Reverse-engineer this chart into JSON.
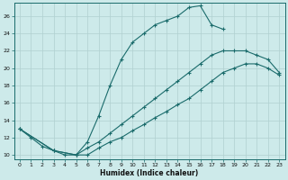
{
  "xlabel": "Humidex (Indice chaleur)",
  "xlim": [
    -0.5,
    23.5
  ],
  "ylim": [
    9.5,
    27.5
  ],
  "xticks": [
    0,
    1,
    2,
    3,
    4,
    5,
    6,
    7,
    8,
    9,
    10,
    11,
    12,
    13,
    14,
    15,
    16,
    17,
    18,
    19,
    20,
    21,
    22,
    23
  ],
  "yticks": [
    10,
    12,
    14,
    16,
    18,
    20,
    22,
    24,
    26
  ],
  "background_color": "#cdeaea",
  "grid_color": "#b0d0d0",
  "line_color": "#1a6b6b",
  "curve1_x": [
    0,
    1,
    2,
    3,
    4,
    5,
    6,
    7,
    8,
    9,
    10,
    11,
    12,
    13,
    14,
    15,
    16,
    17,
    18
  ],
  "curve1_y": [
    13,
    12,
    11,
    10.5,
    10.0,
    10.0,
    11.5,
    14.5,
    18.0,
    21.0,
    23.0,
    24.0,
    25.0,
    25.5,
    26.0,
    27.0,
    27.2,
    25.0,
    24.5
  ],
  "curve2_x": [
    0,
    3,
    5,
    6,
    7,
    8,
    9,
    10,
    11,
    12,
    13,
    14,
    15,
    16,
    17,
    18,
    19,
    20,
    21,
    22,
    23
  ],
  "curve2_y": [
    13,
    10.5,
    10.0,
    10.8,
    11.5,
    12.5,
    13.5,
    14.5,
    15.5,
    16.5,
    17.5,
    18.5,
    19.5,
    20.5,
    21.5,
    22.0,
    22.0,
    22.0,
    21.5,
    21.0,
    19.5
  ],
  "curve3_x": [
    0,
    3,
    5,
    6,
    7,
    8,
    9,
    10,
    11,
    12,
    13,
    14,
    15,
    16,
    17,
    18,
    19,
    20,
    21,
    22,
    23
  ],
  "curve3_y": [
    13,
    10.5,
    10.0,
    10.0,
    10.8,
    11.5,
    12.0,
    12.8,
    13.5,
    14.3,
    15.0,
    15.8,
    16.5,
    17.5,
    18.5,
    19.5,
    20.0,
    20.5,
    20.5,
    20.0,
    19.2
  ]
}
